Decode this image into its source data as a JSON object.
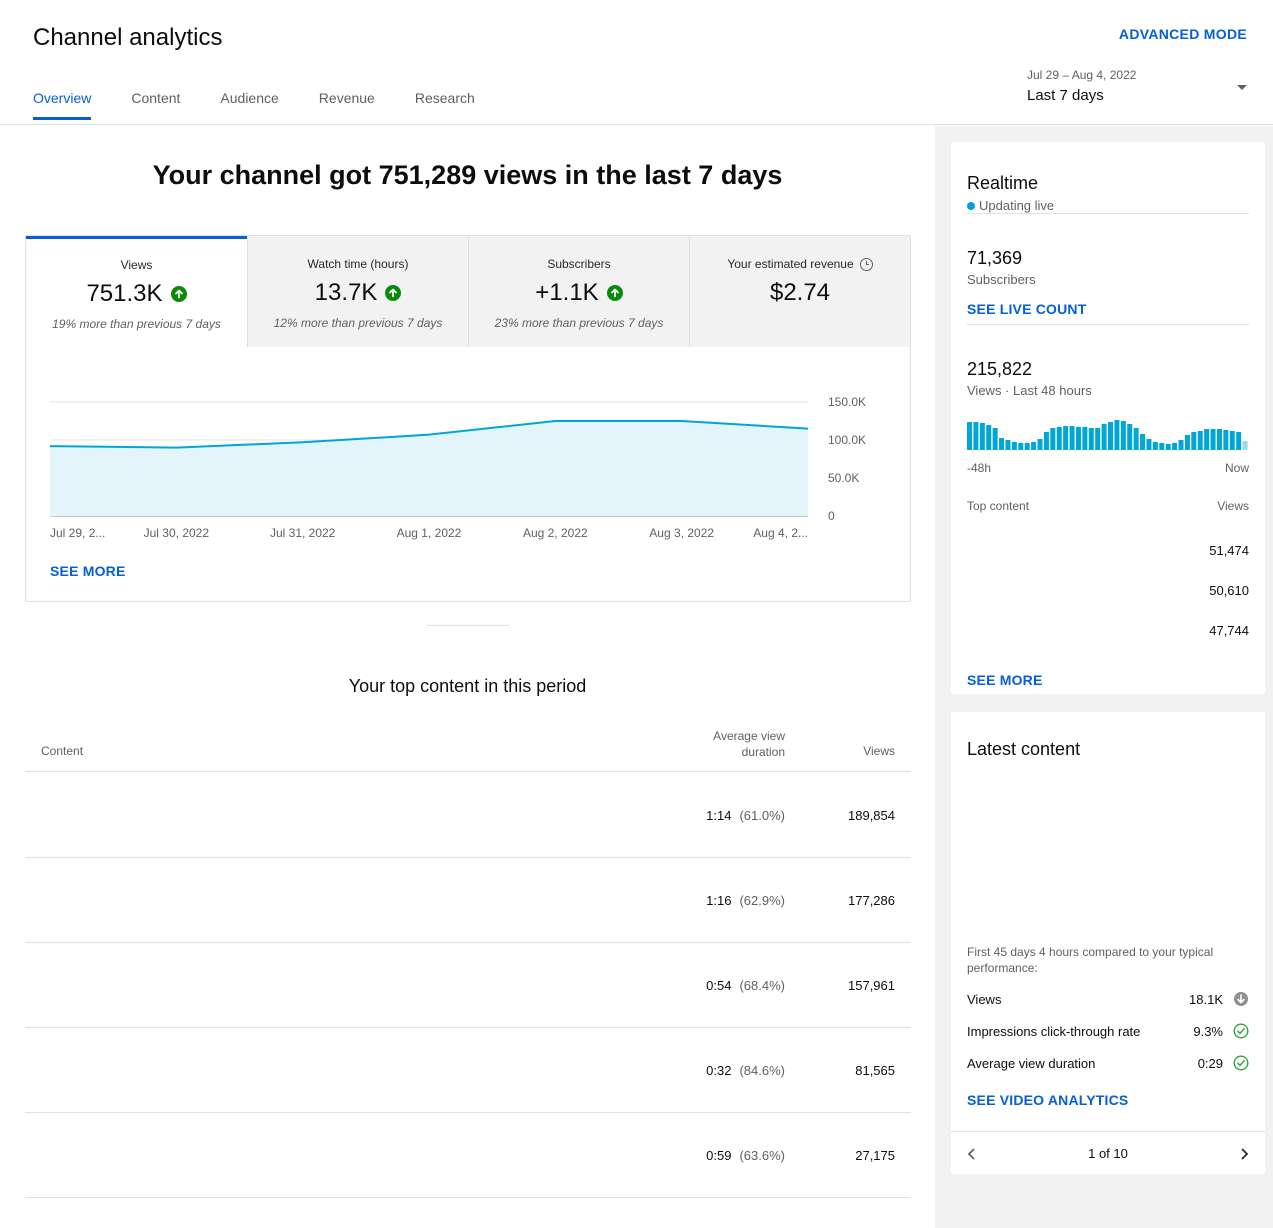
{
  "header": {
    "title": "Channel analytics",
    "advanced_mode": "ADVANCED MODE",
    "tabs": [
      {
        "label": "Overview",
        "active": true
      },
      {
        "label": "Content"
      },
      {
        "label": "Audience"
      },
      {
        "label": "Revenue"
      },
      {
        "label": "Research"
      }
    ],
    "date_range": {
      "dates": "Jul 29 – Aug 4, 2022",
      "label": "Last 7 days"
    }
  },
  "overview": {
    "headline": "Your channel got 751,289 views in the last 7 days",
    "metrics": [
      {
        "label": "Views",
        "value": "751.3K",
        "note": "19% more than previous 7 days",
        "trend": "up"
      },
      {
        "label": "Watch time (hours)",
        "value": "13.7K",
        "note": "12% more than previous 7 days",
        "trend": "up"
      },
      {
        "label": "Subscribers",
        "value": "+1.1K",
        "note": "23% more than previous 7 days",
        "trend": "up"
      },
      {
        "label": "Your estimated revenue",
        "value": "$2.74",
        "note": "",
        "trend": "none"
      }
    ],
    "see_more": "SEE MORE"
  },
  "chart_data": {
    "type": "area",
    "x": [
      "Jul 29, 2...",
      "Jul 30, 2022",
      "Jul 31, 2022",
      "Aug 1, 2022",
      "Aug 2, 2022",
      "Aug 3, 2022",
      "Aug 4, 2..."
    ],
    "values": [
      92000,
      90000,
      97000,
      107000,
      125000,
      125000,
      115000
    ],
    "yticks": [
      "150.0K",
      "100.0K",
      "50.0K",
      "0"
    ],
    "ylim": [
      0,
      150000
    ],
    "color": "#00a6d6",
    "fill": "#e3f4fa",
    "grid": true
  },
  "top_content": {
    "title": "Your top content in this period",
    "headers": {
      "content": "Content",
      "avd": "Average view duration",
      "views": "Views"
    },
    "rows": [
      {
        "duration": "1:14",
        "pct": "(61.0%)",
        "views": "189,854"
      },
      {
        "duration": "1:16",
        "pct": "(62.9%)",
        "views": "177,286"
      },
      {
        "duration": "0:54",
        "pct": "(68.4%)",
        "views": "157,961"
      },
      {
        "duration": "0:32",
        "pct": "(84.6%)",
        "views": "81,565"
      },
      {
        "duration": "0:59",
        "pct": "(63.6%)",
        "views": "27,175"
      }
    ]
  },
  "realtime": {
    "title": "Realtime",
    "live": "Updating live",
    "subscribers": "71,369",
    "subscribers_label": "Subscribers",
    "see_live_count": "SEE LIVE COUNT",
    "views": "215,822",
    "views_label": "Views · Last 48 hours",
    "axis_start": "-48h",
    "axis_end": "Now",
    "hourly_views": [
      28,
      28,
      27,
      25,
      22,
      12,
      10,
      8,
      7,
      7,
      8,
      11,
      18,
      22,
      23,
      24,
      24,
      23,
      23,
      22,
      22,
      26,
      28,
      30,
      29,
      26,
      22,
      16,
      11,
      8,
      7,
      6,
      7,
      10,
      15,
      18,
      19,
      21,
      21,
      21,
      20,
      19,
      18,
      9
    ],
    "top_content_label": "Top content",
    "views_col": "Views",
    "top_views": [
      "51,474",
      "50,610",
      "47,744"
    ],
    "see_more": "SEE MORE"
  },
  "latest": {
    "title": "Latest content",
    "desc": "First 45 days 4 hours compared to your typical performance:",
    "rows": [
      {
        "label": "Views",
        "value": "18.1K",
        "icon": "down-arrow-icon"
      },
      {
        "label": "Impressions click-through rate",
        "value": "9.3%",
        "icon": "check-icon"
      },
      {
        "label": "Average view duration",
        "value": "0:29",
        "icon": "check-icon"
      }
    ],
    "see_video": "SEE VIDEO ANALYTICS",
    "pager": "1 of 10"
  }
}
